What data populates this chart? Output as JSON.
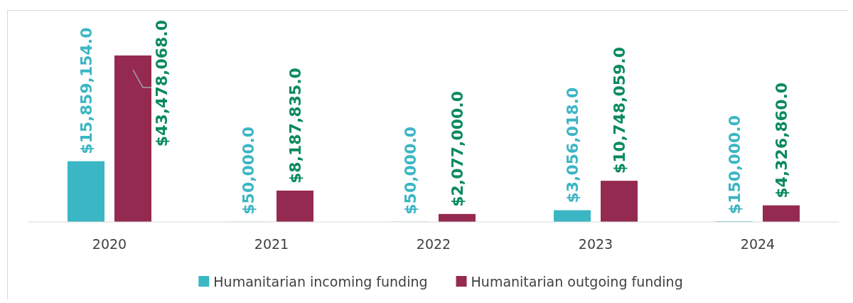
{
  "chart_data": {
    "type": "bar",
    "categories": [
      "2020",
      "2021",
      "2022",
      "2023",
      "2024"
    ],
    "series": [
      {
        "name": "Humanitarian incoming funding",
        "color": "#3bb6c4",
        "values": [
          15859154,
          50000,
          50000,
          3056018,
          150000
        ],
        "value_labels": [
          "$15,859,154.0",
          "$50,000.0",
          "$50,000.0",
          "$3,056,018.0",
          "$150,000.0"
        ]
      },
      {
        "name": "Humanitarian outgoing funding",
        "color": "#952a51",
        "values": [
          43478068,
          8187835,
          2077000,
          10748059,
          4326860
        ],
        "value_labels": [
          "$43,478,068.0",
          "$8,187,835.0",
          "$2,077,000.0",
          "$10,748,059.0",
          "$4,326,860.0"
        ]
      }
    ],
    "legend": "bottom"
  }
}
